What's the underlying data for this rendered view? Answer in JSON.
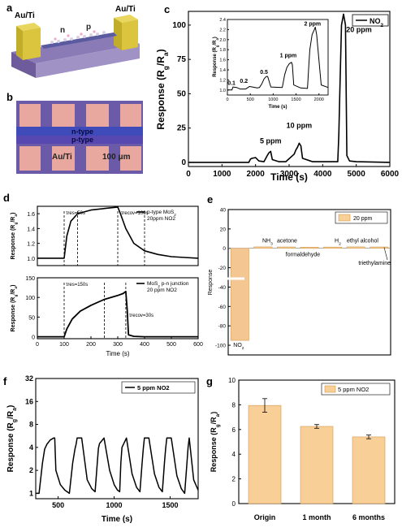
{
  "panels": {
    "a": {
      "letter": "a",
      "labels": [
        "Au/Ti",
        "n",
        "p",
        "Au/Ti"
      ]
    },
    "b": {
      "letter": "b",
      "labels": [
        "n-type",
        "p-type",
        "Au/Ti"
      ],
      "scale_bar": "100 μm"
    },
    "c": {
      "letter": "c"
    },
    "d": {
      "letter": "d"
    },
    "e": {
      "letter": "e"
    },
    "f": {
      "letter": "f"
    },
    "g": {
      "letter": "g"
    }
  },
  "colors": {
    "bar_fill": "#f9cf98",
    "bar_edge": "#d29a52",
    "line": "#000000",
    "neg_bar": "#f4c692"
  },
  "chart_data": [
    {
      "id": "c",
      "type": "line",
      "xlabel": "Time (s)",
      "ylabel": "Response (R_g/R_a)",
      "xlim": [
        0,
        6000
      ],
      "ylim": [
        -3,
        110
      ],
      "xticks": [
        0,
        1000,
        2000,
        3000,
        4000,
        5000,
        6000
      ],
      "yticks": [
        0,
        25,
        50,
        75,
        100
      ],
      "legend": [
        "NO2"
      ],
      "legend_position": "top-right",
      "annotations": [
        {
          "text": "5 ppm",
          "x": 2450,
          "y": 14
        },
        {
          "text": "10 ppm",
          "x": 3300,
          "y": 25
        },
        {
          "text": "20 ppm",
          "x": 4700,
          "y": 95
        }
      ],
      "x": [
        0,
        1000,
        1800,
        1850,
        1900,
        2000,
        2100,
        2250,
        2350,
        2400,
        2450,
        2500,
        2700,
        2900,
        3150,
        3200,
        3250,
        3300,
        3350,
        3400,
        3700,
        4000,
        4450,
        4480,
        4520,
        4560,
        4620,
        4680,
        4720,
        4800,
        5000,
        6000
      ],
      "y": [
        0,
        0,
        0,
        2.5,
        3,
        3.5,
        1,
        0.5,
        5,
        7,
        8,
        2,
        0.5,
        0.5,
        6,
        9,
        11,
        14,
        12,
        3,
        0.5,
        0.5,
        0.5,
        20,
        60,
        100,
        108,
        100,
        5,
        1,
        0.5,
        0
      ]
    },
    {
      "id": "c-inset",
      "type": "line",
      "xlabel": "Time (s)",
      "ylabel": "Response (R_g/R_a)",
      "xlim": [
        0,
        2200
      ],
      "ylim": [
        0.9,
        2.4
      ],
      "xticks": [
        0,
        500,
        1000,
        1500,
        2000
      ],
      "yticks": [
        1.0,
        1.2,
        1.4,
        1.6,
        1.8,
        2.0,
        2.2,
        2.4
      ],
      "annotations": [
        {
          "text": "0.1",
          "x": 90,
          "y": 1.1
        },
        {
          "text": "0.2",
          "x": 360,
          "y": 1.14
        },
        {
          "text": "0.5",
          "x": 800,
          "y": 1.32
        },
        {
          "text": "1 ppm",
          "x": 1330,
          "y": 1.65
        },
        {
          "text": "2 ppm",
          "x": 1860,
          "y": 2.28
        }
      ],
      "x": [
        0,
        100,
        120,
        200,
        250,
        280,
        400,
        450,
        480,
        550,
        650,
        700,
        750,
        800,
        850,
        880,
        950,
        1200,
        1250,
        1300,
        1350,
        1400,
        1420,
        1450,
        1600,
        1750,
        1780,
        1800,
        1850,
        1900,
        1920,
        1950,
        2050,
        2200
      ],
      "y": [
        1.0,
        1.0,
        1.06,
        1.05,
        1.03,
        1.02,
        1.02,
        1.05,
        1.07,
        1.06,
        1.04,
        1.05,
        1.12,
        1.22,
        1.27,
        1.27,
        1.06,
        1.05,
        1.3,
        1.45,
        1.52,
        1.55,
        1.5,
        1.1,
        1.04,
        1.03,
        1.5,
        1.8,
        2.1,
        2.2,
        2.25,
        2.1,
        1.1,
        1.05
      ]
    },
    {
      "id": "d-top",
      "type": "line",
      "xlabel": "",
      "ylabel": "Response (R_g/R_a)",
      "xlim": [
        0,
        600
      ],
      "ylim": [
        0.9,
        1.7
      ],
      "yticks": [
        1.0,
        1.2,
        1.4,
        1.6
      ],
      "legend": [
        "p-type MoS2",
        "20ppm NO2"
      ],
      "legend_position": "top-right",
      "annotations": [
        {
          "text": "τres=50s"
        },
        {
          "text": "τrecov=100s"
        }
      ],
      "vlines": [
        100,
        150,
        300,
        400
      ],
      "x": [
        0,
        100,
        110,
        125,
        150,
        200,
        250,
        300,
        310,
        330,
        360,
        400,
        450,
        500,
        550,
        600
      ],
      "y": [
        1.0,
        1.0,
        1.3,
        1.5,
        1.6,
        1.65,
        1.67,
        1.69,
        1.6,
        1.4,
        1.2,
        1.1,
        1.05,
        1.02,
        1.01,
        1.0
      ]
    },
    {
      "id": "d-bottom",
      "type": "line",
      "xlabel": "Time (s)",
      "ylabel": "Response (R_g/R_a)",
      "xlim": [
        0,
        600
      ],
      "ylim": [
        -5,
        150
      ],
      "xticks": [
        0,
        100,
        200,
        300,
        400,
        500,
        600
      ],
      "yticks": [
        0,
        50,
        100,
        150
      ],
      "legend": [
        "MoS2 p-n junction",
        "20 ppm NO2"
      ],
      "legend_position": "top-right",
      "annotations": [
        {
          "text": "τres=150s"
        },
        {
          "text": "τrecov=30s"
        }
      ],
      "vlines": [
        100,
        250,
        330
      ],
      "x": [
        0,
        100,
        110,
        130,
        160,
        200,
        250,
        300,
        320,
        330,
        335,
        340,
        360,
        400,
        600
      ],
      "y": [
        0,
        0,
        20,
        45,
        65,
        80,
        95,
        105,
        110,
        115,
        70,
        5,
        1,
        0,
        0
      ]
    },
    {
      "id": "e",
      "type": "bar",
      "ylabel": "Response",
      "ylim": [
        -110,
        40
      ],
      "yticks": [
        -100,
        -80,
        -60,
        -40,
        -20,
        0,
        20,
        40
      ],
      "legend": [
        "20 ppm"
      ],
      "legend_position": "top-right",
      "categories": [
        "NO2",
        "NH3",
        "acetone",
        "formaldehyde",
        "H2",
        "ethyl alcohol",
        "triethylamine"
      ],
      "values": [
        -95,
        1.5,
        1.4,
        1.2,
        1.3,
        1.5,
        1.4
      ]
    },
    {
      "id": "f",
      "type": "line",
      "xlabel": "Time (s)",
      "ylabel": "Response (R_g/R_a)",
      "log_y": true,
      "xlim": [
        300,
        1750
      ],
      "ylim": [
        0.85,
        32
      ],
      "xticks": [
        500,
        1000,
        1500
      ],
      "yticks": [
        1,
        2,
        4,
        8,
        16,
        32
      ],
      "legend": [
        "5 ppm NO2"
      ],
      "legend_position": "top-right",
      "x": [
        300,
        330,
        360,
        380,
        400,
        430,
        460,
        470,
        480,
        520,
        560,
        600,
        630,
        650,
        660,
        670,
        710,
        760,
        800,
        830,
        850,
        860,
        870,
        910,
        960,
        1000,
        1030,
        1050,
        1060,
        1070,
        1110,
        1160,
        1200,
        1230,
        1250,
        1260,
        1270,
        1310,
        1360,
        1400,
        1430,
        1450,
        1460,
        1470,
        1510,
        1560,
        1600,
        1630,
        1650,
        1660,
        1670,
        1710,
        1750
      ],
      "y": [
        1.0,
        1.0,
        2.5,
        3.8,
        4.4,
        5,
        5.3,
        5.3,
        2,
        1.3,
        1.1,
        1.0,
        2.5,
        3.8,
        4.4,
        5.3,
        5.3,
        1.5,
        1.15,
        1.05,
        2.6,
        3.9,
        4.5,
        5.3,
        2,
        1.3,
        1.1,
        1.05,
        2.5,
        4,
        5.3,
        1.8,
        1.2,
        1.05,
        2.5,
        3.8,
        5.3,
        5.3,
        1.8,
        1.2,
        1.05,
        2.6,
        3.9,
        5.3,
        5.3,
        1.7,
        1.15,
        1.0,
        2.5,
        4,
        5.3,
        1.5,
        1.1
      ]
    },
    {
      "id": "g",
      "type": "bar",
      "ylabel": "Response (R_g/R_a)",
      "ylim": [
        0,
        10
      ],
      "yticks": [
        0,
        2,
        4,
        6,
        8,
        10
      ],
      "legend": [
        "5 ppm NO2"
      ],
      "legend_position": "top-right",
      "categories": [
        "Origin",
        "1 month",
        "6 months"
      ],
      "values": [
        7.95,
        6.25,
        5.4
      ],
      "errors": [
        0.55,
        0.15,
        0.15
      ]
    }
  ]
}
